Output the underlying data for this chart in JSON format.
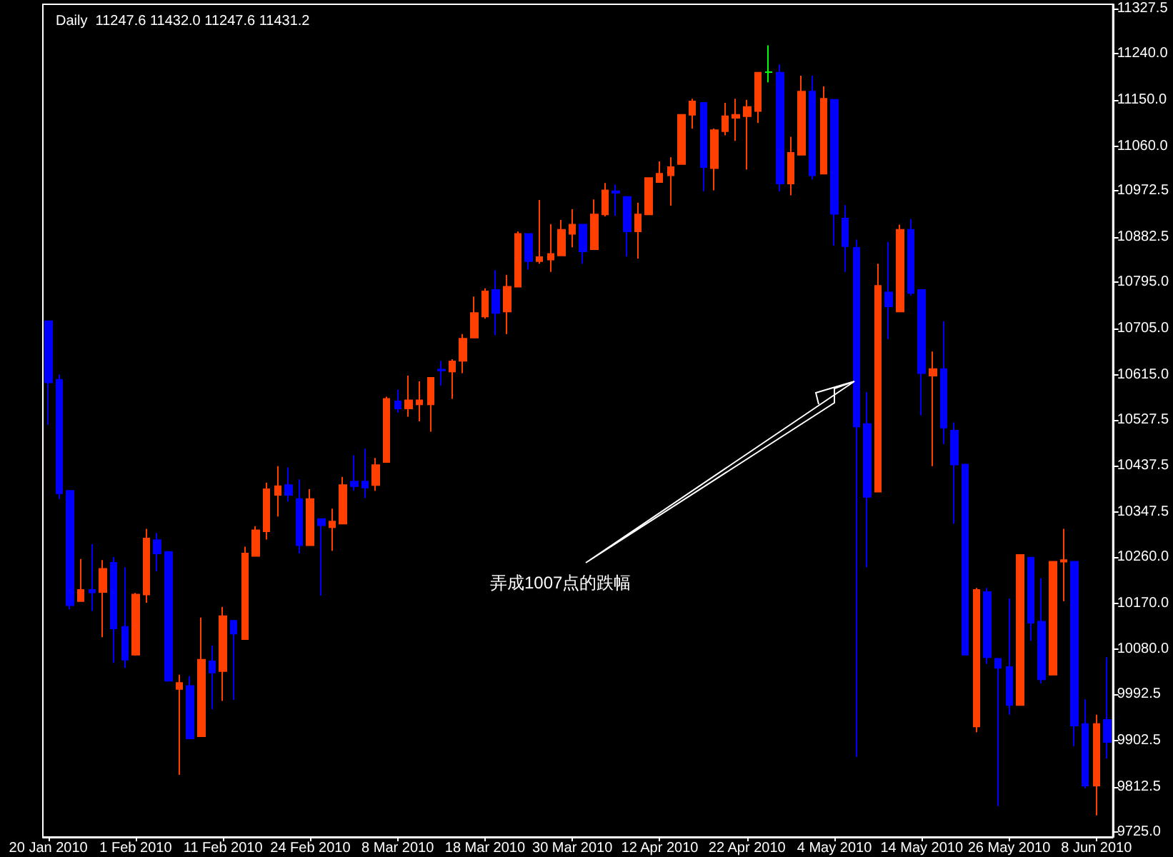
{
  "chart_data": {
    "type": "candlestick",
    "title": "Daily  11247.6 11432.0 11247.6 11431.2",
    "categories": [
      "20 Jan 2010",
      null,
      null,
      null,
      null,
      null,
      null,
      null,
      "1 Feb 2010",
      null,
      null,
      null,
      null,
      null,
      null,
      null,
      "11 Feb 2010",
      null,
      null,
      null,
      null,
      null,
      null,
      null,
      "24 Feb 2010",
      null,
      null,
      null,
      null,
      null,
      null,
      null,
      "8 Mar 2010",
      null,
      null,
      null,
      null,
      null,
      null,
      null,
      "18 Mar 2010",
      null,
      null,
      null,
      null,
      null,
      null,
      null,
      "30 Mar 2010",
      null,
      null,
      null,
      null,
      null,
      null,
      null,
      "12 Apr 2010",
      null,
      null,
      null,
      null,
      null,
      null,
      null,
      "22 Apr 2010",
      null,
      null,
      null,
      null,
      null,
      null,
      null,
      "4 May 2010",
      null,
      null,
      null,
      null,
      null,
      null,
      null,
      "14 May 2010",
      null,
      null,
      null,
      null,
      null,
      null,
      null,
      "26 May 2010",
      null,
      null,
      null,
      null,
      null,
      null,
      null,
      "8 Jun 2010",
      null
    ],
    "ohlc": [
      [
        10719,
        10719,
        10517,
        10600
      ],
      [
        10605,
        10615,
        10373,
        10384
      ],
      [
        10389,
        10389,
        10158,
        10166
      ],
      [
        10174,
        10256,
        10174,
        10196
      ],
      [
        10196,
        10285,
        10155,
        10191
      ],
      [
        10192,
        10254,
        10104,
        10237
      ],
      [
        10249,
        10260,
        10054,
        10121
      ],
      [
        10124,
        10240,
        10044,
        10060
      ],
      [
        10070,
        10190,
        10068,
        10187
      ],
      [
        10187,
        10315,
        10171,
        10296
      ],
      [
        10293,
        10307,
        10232,
        10267
      ],
      [
        10270,
        10270,
        10019,
        10019
      ],
      [
        10003,
        10031,
        9836,
        10015
      ],
      [
        10009,
        10028,
        9905,
        9907
      ],
      [
        9911,
        10142,
        9911,
        10060
      ],
      [
        10057,
        10088,
        9964,
        10035
      ],
      [
        10038,
        10163,
        9980,
        10145
      ],
      [
        10136,
        10136,
        9982,
        10111
      ],
      [
        10100,
        10280,
        10100,
        10267
      ],
      [
        10262,
        10320,
        10262,
        10312
      ],
      [
        10310,
        10405,
        10294,
        10392
      ],
      [
        10381,
        10437,
        10339,
        10398
      ],
      [
        10400,
        10434,
        10368,
        10381
      ],
      [
        10373,
        10411,
        10267,
        10283
      ],
      [
        10283,
        10392,
        10283,
        10373
      ],
      [
        10334,
        10334,
        10185,
        10322
      ],
      [
        10318,
        10354,
        10272,
        10329
      ],
      [
        10325,
        10416,
        10325,
        10400
      ],
      [
        10407,
        10458,
        10389,
        10398
      ],
      [
        10407,
        10471,
        10375,
        10395
      ],
      [
        10400,
        10453,
        10389,
        10439
      ],
      [
        10445,
        10572,
        10445,
        10568
      ],
      [
        10563,
        10586,
        10541,
        10549
      ],
      [
        10549,
        10613,
        10533,
        10565
      ],
      [
        10557,
        10602,
        10524,
        10565
      ],
      [
        10557,
        10609,
        10504,
        10609
      ],
      [
        10625,
        10642,
        10594,
        10623
      ],
      [
        10621,
        10645,
        10568,
        10641
      ],
      [
        10642,
        10694,
        10618,
        10685
      ],
      [
        10687,
        10767,
        10687,
        10735
      ],
      [
        10728,
        10783,
        10724,
        10777
      ],
      [
        10780,
        10818,
        10692,
        10735
      ],
      [
        10738,
        10809,
        10694,
        10786
      ],
      [
        10786,
        10894,
        10786,
        10889
      ],
      [
        10889,
        10889,
        10820,
        10836
      ],
      [
        10836,
        10955,
        10831,
        10844
      ],
      [
        10839,
        10908,
        10815,
        10850
      ],
      [
        10847,
        10916,
        10847,
        10897
      ],
      [
        10889,
        10937,
        10863,
        10907
      ],
      [
        10907,
        10907,
        10831,
        10855
      ],
      [
        10859,
        10956,
        10859,
        10927
      ],
      [
        10927,
        10988,
        10923,
        10974
      ],
      [
        10972,
        10985,
        10924,
        10969
      ],
      [
        10961,
        10961,
        10845,
        10894
      ],
      [
        10894,
        10950,
        10841,
        10927
      ],
      [
        10927,
        10998,
        10927,
        10998
      ],
      [
        10990,
        11030,
        10990,
        11006
      ],
      [
        11003,
        11038,
        10944,
        11019
      ],
      [
        11025,
        11121,
        11025,
        11121
      ],
      [
        11121,
        11152,
        11094,
        11147
      ],
      [
        11144,
        11144,
        10972,
        11019
      ],
      [
        11017,
        11094,
        10974,
        11091
      ],
      [
        11089,
        11144,
        11081,
        11118
      ],
      [
        11115,
        11152,
        11070,
        11121
      ],
      [
        11118,
        11150,
        11014,
        11136
      ],
      [
        11128,
        11203,
        11105,
        11203
      ],
      [
        11204,
        11256,
        11184,
        11204
      ],
      [
        11203,
        11219,
        10972,
        10987
      ],
      [
        10987,
        11078,
        10964,
        11047
      ],
      [
        11043,
        11197,
        11043,
        11166
      ],
      [
        11166,
        11197,
        10995,
        11003
      ],
      [
        11006,
        11176,
        11006,
        11152
      ],
      [
        11150,
        11150,
        10866,
        10928
      ],
      [
        10919,
        10945,
        10815,
        10865
      ],
      [
        10862,
        10878,
        9871,
        10514
      ],
      [
        10519,
        10581,
        10240,
        10377
      ],
      [
        10387,
        10831,
        10387,
        10788
      ],
      [
        10775,
        10873,
        10684,
        10748
      ],
      [
        10738,
        10907,
        10738,
        10897
      ],
      [
        10897,
        10918,
        10769,
        10774
      ],
      [
        10780,
        10780,
        10536,
        10618
      ],
      [
        10613,
        10660,
        10437,
        10626
      ],
      [
        10626,
        10719,
        10480,
        10512
      ],
      [
        10506,
        10522,
        10325,
        10440
      ],
      [
        10440,
        10440,
        10070,
        10070
      ],
      [
        9930,
        10200,
        9919,
        10196
      ],
      [
        10192,
        10200,
        10052,
        10065
      ],
      [
        10062,
        10062,
        9775,
        10044
      ],
      [
        10046,
        10179,
        9953,
        9972
      ],
      [
        9972,
        10264,
        9972,
        10264
      ],
      [
        10259,
        10259,
        10097,
        10132
      ],
      [
        10134,
        10219,
        10014,
        10022
      ],
      [
        10031,
        10251,
        10031,
        10251
      ],
      [
        10251,
        10315,
        10174,
        10254
      ],
      [
        10251,
        10251,
        9892,
        9932
      ],
      [
        9935,
        9983,
        9810,
        9815
      ],
      [
        9815,
        9953,
        9757,
        9935
      ],
      [
        9943,
        10065,
        9868,
        9900
      ]
    ],
    "colors": [
      "#0000ff",
      "#0000ff",
      "#0000ff",
      "#ff4000",
      "#0000ff",
      "#ff4000",
      "#0000ff",
      "#0000ff",
      "#ff4000",
      "#ff4000",
      "#0000ff",
      "#0000ff",
      "#ff4000",
      "#0000ff",
      "#ff4000",
      "#0000ff",
      "#ff4000",
      "#0000ff",
      "#ff4000",
      "#ff4000",
      "#ff4000",
      "#ff4000",
      "#0000ff",
      "#0000ff",
      "#ff4000",
      "#0000ff",
      "#ff4000",
      "#ff4000",
      "#0000ff",
      "#0000ff",
      "#ff4000",
      "#ff4000",
      "#0000ff",
      "#ff4000",
      "#ff4000",
      "#ff4000",
      "#0000ff",
      "#ff4000",
      "#ff4000",
      "#ff4000",
      "#ff4000",
      "#0000ff",
      "#ff4000",
      "#ff4000",
      "#0000ff",
      "#ff4000",
      "#ff4000",
      "#ff4000",
      "#ff4000",
      "#0000ff",
      "#ff4000",
      "#ff4000",
      "#0000ff",
      "#0000ff",
      "#ff4000",
      "#ff4000",
      "#ff4000",
      "#ff4000",
      "#ff4000",
      "#ff4000",
      "#0000ff",
      "#ff4000",
      "#ff4000",
      "#ff4000",
      "#ff4000",
      "#ff4000",
      "#00ff00",
      "#0000ff",
      "#ff4000",
      "#ff4000",
      "#0000ff",
      "#ff4000",
      "#0000ff",
      "#0000ff",
      "#0000ff",
      "#0000ff",
      "#ff4000",
      "#0000ff",
      "#ff4000",
      "#0000ff",
      "#0000ff",
      "#ff4000",
      "#0000ff",
      "#0000ff",
      "#0000ff",
      "#ff4000",
      "#0000ff",
      "#0000ff",
      "#0000ff",
      "#ff4000",
      "#0000ff",
      "#0000ff",
      "#ff4000",
      "#ff4000",
      "#0000ff",
      "#0000ff",
      "#ff4000",
      "#0000ff"
    ],
    "ylim": [
      9715,
      11336
    ],
    "yticks": [
      {
        "value": 11327.5,
        "label": "11327.5"
      },
      {
        "value": 11240,
        "label": "11240.0"
      },
      {
        "value": 11150,
        "label": "11150.0"
      },
      {
        "value": 11060,
        "label": "11060.0"
      },
      {
        "value": 10972.5,
        "label": "10972.5"
      },
      {
        "value": 10882.5,
        "label": "10882.5"
      },
      {
        "value": 10795,
        "label": "10795.0"
      },
      {
        "value": 10705,
        "label": "10705.0"
      },
      {
        "value": 10615,
        "label": "10615.0"
      },
      {
        "value": 10527.5,
        "label": "10527.5"
      },
      {
        "value": 10437.5,
        "label": "10437.5"
      },
      {
        "value": 10347.5,
        "label": "10347.5"
      },
      {
        "value": 10260,
        "label": "10260.0"
      },
      {
        "value": 10170,
        "label": "10170.0"
      },
      {
        "value": 10080,
        "label": "10080.0"
      },
      {
        "value": 9992.5,
        "label": "9992.5"
      },
      {
        "value": 9902.5,
        "label": "9902.5"
      },
      {
        "value": 9812.5,
        "label": "9812.5"
      },
      {
        "value": 9725,
        "label": "9725.0"
      }
    ],
    "annotations": [
      "弄成1007点的跌幅"
    ],
    "grid": false
  }
}
